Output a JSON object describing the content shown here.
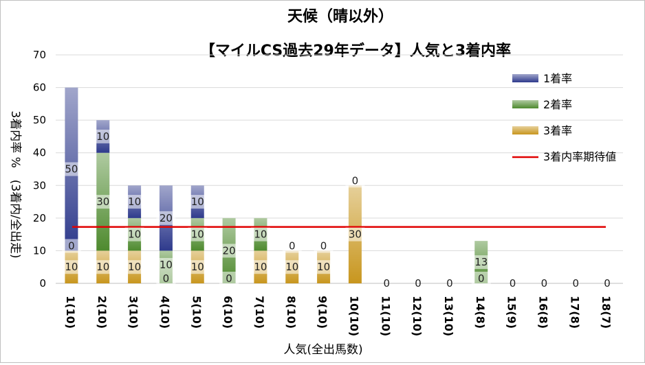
{
  "chart_data": {
    "type": "bar",
    "stacked": true,
    "title": "天候（晴以外）",
    "subtitle": "【マイルCS過去29年データ】人気と3着内率",
    "xlabel": "人気(全出馬数)",
    "ylabel": "3着内率 %　(3着内/全出走)",
    "ylim": [
      0,
      70
    ],
    "yticks": [
      0,
      10,
      20,
      30,
      40,
      50,
      60,
      70
    ],
    "grid": true,
    "legend_position": "right",
    "categories": [
      "1(10)",
      "2(10)",
      "3(10)",
      "4(10)",
      "5(10)",
      "6(10)",
      "7(10)",
      "8(10)",
      "9(10)",
      "10(10)",
      "11(10)",
      "12(10)",
      "13(10)",
      "14(8)",
      "15(9)",
      "16(8)",
      "17(8)",
      "18(7)"
    ],
    "series": [
      {
        "name": "3着率",
        "color": "#c8961e",
        "values": [
          10,
          10,
          10,
          0,
          10,
          0,
          10,
          10,
          10,
          30,
          0,
          0,
          0,
          0,
          0,
          0,
          0,
          0
        ]
      },
      {
        "name": "2着率",
        "color": "#4e8a2e",
        "values": [
          0,
          30,
          10,
          10,
          10,
          20,
          10,
          0,
          0,
          0,
          0,
          0,
          0,
          13,
          0,
          0,
          0,
          0
        ]
      },
      {
        "name": "1着率",
        "color": "#2e3a8c",
        "values": [
          50,
          10,
          10,
          20,
          10,
          0,
          0,
          0,
          0,
          0,
          0,
          0,
          0,
          0,
          0,
          0,
          0,
          0
        ]
      }
    ],
    "reference_line": {
      "name": "3着内率期待値",
      "color": "#e00000",
      "value": 17.3
    }
  }
}
